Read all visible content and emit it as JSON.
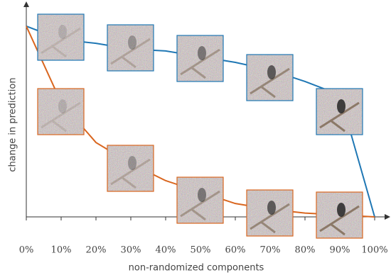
{
  "chart_data": {
    "type": "line",
    "x_label": "non-randomized components",
    "y_label": "change in prediction",
    "x": [
      0,
      10,
      20,
      30,
      40,
      50,
      60,
      70,
      80,
      90,
      100
    ],
    "xlim": [
      0,
      100
    ],
    "xticks": [
      {
        "value": 0,
        "label": "0%"
      },
      {
        "value": 10,
        "label": "10%"
      },
      {
        "value": 20,
        "label": "20%"
      },
      {
        "value": 30,
        "label": "30%"
      },
      {
        "value": 40,
        "label": "40%"
      },
      {
        "value": 50,
        "label": "50%"
      },
      {
        "value": 60,
        "label": "60%"
      },
      {
        "value": 70,
        "label": "70%"
      },
      {
        "value": 80,
        "label": "80%"
      },
      {
        "value": 90,
        "label": "90%"
      },
      {
        "value": 100,
        "label": "100%"
      }
    ],
    "ylim": [
      0,
      1.1
    ],
    "series": [
      {
        "color": "#1f77b4",
        "values": [
          1.0,
          0.93,
          0.91,
          0.88,
          0.87,
          0.84,
          0.81,
          0.77,
          0.71,
          0.64,
          0.0
        ]
      },
      {
        "color": "#d9661f",
        "values": [
          1.0,
          0.6,
          0.39,
          0.28,
          0.19,
          0.13,
          0.07,
          0.04,
          0.02,
          0.01,
          0.0
        ]
      }
    ]
  }
}
